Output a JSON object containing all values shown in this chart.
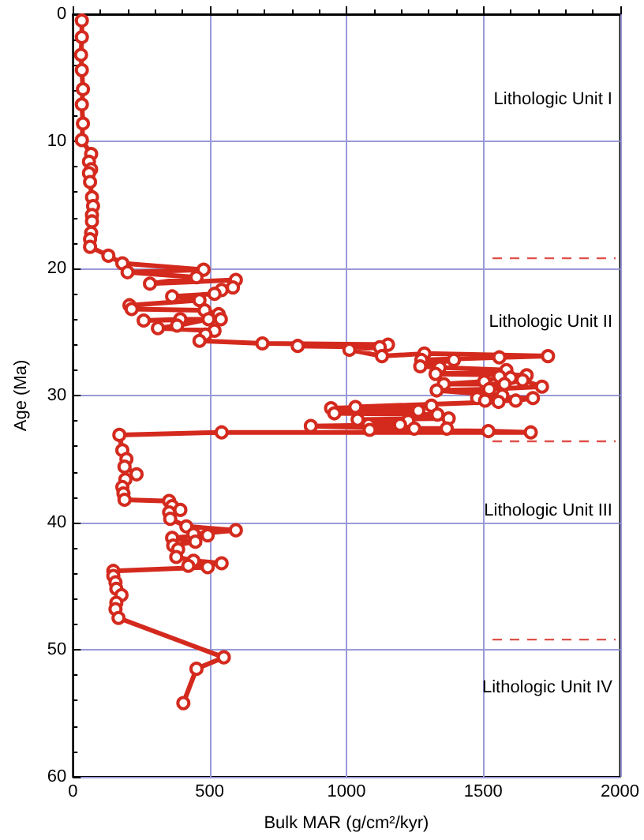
{
  "chart_data": {
    "type": "line",
    "xlabel": "Bulk MAR (g/cm²/kyr)",
    "ylabel": "Age (Ma)",
    "xlim": [
      0,
      2000
    ],
    "ylim": [
      60,
      0
    ],
    "xticks": [
      0,
      {
        "value": 100,
        "label": null
      },
      {
        "value": 200,
        "label": null
      },
      {
        "value": 300,
        "label": null
      },
      {
        "value": 400,
        "label": null
      },
      500,
      {
        "value": 600,
        "label": null
      },
      {
        "value": 700,
        "label": null
      },
      {
        "value": 800,
        "label": null
      },
      {
        "value": 900,
        "label": null
      },
      1000,
      {
        "value": 1100,
        "label": null
      },
      {
        "value": 1200,
        "label": null
      },
      {
        "value": 1300,
        "label": null
      },
      {
        "value": 1400,
        "label": null
      },
      1500,
      {
        "value": 1600,
        "label": null
      },
      {
        "value": 1700,
        "label": null
      },
      {
        "value": 1800,
        "label": null
      },
      {
        "value": 1900,
        "label": null
      },
      2000
    ],
    "yticks": [
      0,
      {
        "value": 2,
        "label": null
      },
      {
        "value": 4,
        "label": null
      },
      {
        "value": 6,
        "label": null
      },
      {
        "value": 8,
        "label": null
      },
      10,
      {
        "value": 12,
        "label": null
      },
      {
        "value": 14,
        "label": null
      },
      {
        "value": 16,
        "label": null
      },
      {
        "value": 18,
        "label": null
      },
      20,
      {
        "value": 22,
        "label": null
      },
      {
        "value": 24,
        "label": null
      },
      {
        "value": 26,
        "label": null
      },
      {
        "value": 28,
        "label": null
      },
      30,
      {
        "value": 32,
        "label": null
      },
      {
        "value": 34,
        "label": null
      },
      {
        "value": 36,
        "label": null
      },
      {
        "value": 38,
        "label": null
      },
      40,
      {
        "value": 42,
        "label": null
      },
      {
        "value": 44,
        "label": null
      },
      {
        "value": 46,
        "label": null
      },
      {
        "value": 48,
        "label": null
      },
      50,
      {
        "value": 52,
        "label": null
      },
      {
        "value": 54,
        "label": null
      },
      {
        "value": 56,
        "label": null
      },
      {
        "value": 58,
        "label": null
      },
      60
    ],
    "grid": true,
    "marker": "circle",
    "line_style": "solid",
    "series": [
      {
        "color": "#d42a1e",
        "x": [
          33,
          33,
          30,
          33,
          37,
          33,
          37,
          33,
          67,
          59,
          67,
          59,
          63,
          70,
          74,
          70,
          70,
          67,
          63,
          63,
          130,
          181,
          478,
          200,
          452,
          282,
          596,
          585,
          544,
          518,
          363,
          463,
          207,
          215,
          482,
          533,
          541,
          393,
          259,
          496,
          381,
          311,
          518,
          485,
          463,
          693,
          1152,
          822,
          1122,
          1011,
          1130,
          1285,
          1737,
          1559,
          1274,
          1393,
          1270,
          1341,
          1585,
          1326,
          1659,
          1600,
          1559,
          1504,
          1356,
          1578,
          1644,
          1715,
          1522,
          1330,
          1570,
          1478,
          1682,
          1619,
          1507,
          1556,
          1033,
          1311,
          944,
          1263,
          956,
          1333,
          1374,
          1041,
          1226,
          1081,
          1196,
          870,
          1248,
          1367,
          1085,
          1519,
          1674,
          544,
          170,
          181,
          196,
          189,
          233,
          192,
          181,
          185,
          189,
          352,
          363,
          393,
          352,
          356,
          415,
          596,
          441,
          493,
          363,
          448,
          367,
          385,
          378,
          441,
          544,
          422,
          493,
          148,
          148,
          156,
          159,
          178,
          159,
          156,
          167,
          552,
          452,
          404
        ],
        "values": [
          0.5,
          1.8,
          3.2,
          4.4,
          5.9,
          7.1,
          8.6,
          9.9,
          11.0,
          11.6,
          12.2,
          12.5,
          13.2,
          14.4,
          15.1,
          15.8,
          16.3,
          17.2,
          17.7,
          18.3,
          19.0,
          19.6,
          20.1,
          20.3,
          20.7,
          21.2,
          20.9,
          21.5,
          21.7,
          22.0,
          22.2,
          22.5,
          22.9,
          23.2,
          23.3,
          23.6,
          24.0,
          24.0,
          24.1,
          24.0,
          24.5,
          24.7,
          24.9,
          25.2,
          25.7,
          25.9,
          26.0,
          26.1,
          26.2,
          26.4,
          26.9,
          26.7,
          26.9,
          27.0,
          27.2,
          27.2,
          27.7,
          27.8,
          28.0,
          28.3,
          28.4,
          28.6,
          28.5,
          28.9,
          29.1,
          29.1,
          28.8,
          29.3,
          29.5,
          29.6,
          30.0,
          30.2,
          30.2,
          30.4,
          30.4,
          30.5,
          30.9,
          30.8,
          31.0,
          31.2,
          31.4,
          31.5,
          31.8,
          31.9,
          32.0,
          32.3,
          32.3,
          32.4,
          32.6,
          32.6,
          32.7,
          32.8,
          32.9,
          32.9,
          33.1,
          34.3,
          35.0,
          35.6,
          36.2,
          36.6,
          37.2,
          37.7,
          38.2,
          38.3,
          38.7,
          39.0,
          39.2,
          39.7,
          40.3,
          40.6,
          40.9,
          41.0,
          41.2,
          41.5,
          41.8,
          42.1,
          42.7,
          43.0,
          43.2,
          43.4,
          43.5,
          43.8,
          44.2,
          44.7,
          45.2,
          45.7,
          46.3,
          46.8,
          47.5,
          50.6,
          51.5,
          54.2
        ]
      }
    ],
    "ref_lines": [
      {
        "axis": "y",
        "value": 19.2,
        "color": "#e0504a",
        "line_style": "dashed"
      },
      {
        "axis": "y",
        "value": 33.6,
        "color": "#e0504a",
        "line_style": "dashed"
      },
      {
        "axis": "y",
        "value": 49.2,
        "color": "#e0504a",
        "line_style": "dashed"
      }
    ],
    "annotations": [
      "Lithologic Unit I",
      "Lithologic Unit II",
      "Lithologic Unit III",
      "Lithologic Unit IV"
    ]
  }
}
